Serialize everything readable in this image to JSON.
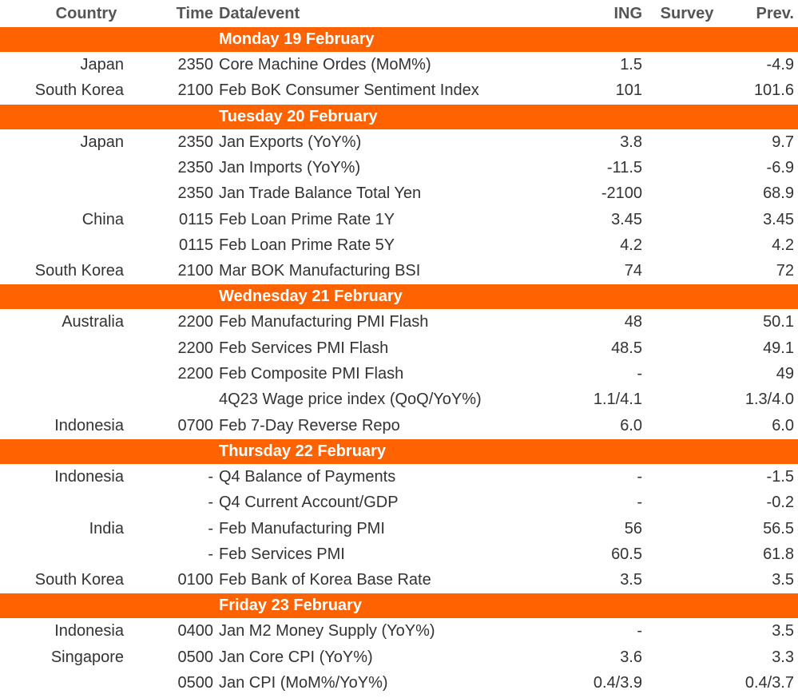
{
  "header": {
    "country": "Country",
    "time": "Time",
    "event": "Data/event",
    "ing": "ING",
    "survey": "Survey",
    "prev": "Prev."
  },
  "sections": [
    {
      "title": "Monday 19 February",
      "rows": [
        [
          "Japan",
          "2350",
          "Core Machine Ordes (MoM%)",
          "1.5",
          "-4.9"
        ],
        [
          "South Korea",
          "2100",
          "Feb BoK Consumer Sentiment Index",
          "101",
          "101.6"
        ]
      ]
    },
    {
      "title": "Tuesday 20 February",
      "rows": [
        [
          "Japan",
          "2350",
          "Jan Exports (YoY%)",
          "3.8",
          "9.7"
        ],
        [
          null,
          "2350",
          "Jan Imports (YoY%)",
          "-11.5",
          "-6.9"
        ],
        [
          null,
          "2350",
          "Jan Trade Balance Total Yen",
          "-2100",
          "68.9"
        ],
        [
          "China",
          "0115",
          "Feb Loan Prime Rate 1Y",
          "3.45",
          "3.45"
        ],
        [
          null,
          "0115",
          "Feb Loan Prime Rate 5Y",
          "4.2",
          "4.2"
        ],
        [
          "South Korea",
          "2100",
          "Mar BOK Manufacturing BSI",
          "74",
          "72"
        ]
      ]
    },
    {
      "title": "Wednesday 21 February",
      "rows": [
        [
          "Australia",
          "2200",
          "Feb Manufacturing PMI Flash",
          "48",
          "50.1"
        ],
        [
          null,
          "2200",
          "Feb Services PMI Flash",
          "48.5",
          "49.1"
        ],
        [
          null,
          "2200",
          "Feb Composite PMI Flash",
          "-",
          "49"
        ],
        [
          null,
          null,
          "4Q23 Wage price index (QoQ/YoY%)",
          "1.1/4.1",
          "1.3/4.0"
        ],
        [
          "Indonesia",
          "0700",
          "Feb 7-Day Reverse Repo",
          "6.0",
          "6.0"
        ]
      ]
    },
    {
      "title": "Thursday 22 February",
      "rows": [
        [
          "Indonesia",
          "-",
          "Q4 Balance of Payments",
          "-",
          "-1.5"
        ],
        [
          null,
          "-",
          "Q4 Current Account/GDP",
          "-",
          "-0.2"
        ],
        [
          "India",
          "-",
          "Feb Manufacturing PMI",
          "56",
          "56.5"
        ],
        [
          null,
          "-",
          "Feb Services PMI",
          "60.5",
          "61.8"
        ],
        [
          "South Korea",
          "0100",
          "Feb Bank of Korea Base Rate",
          "3.5",
          "3.5"
        ]
      ]
    },
    {
      "title": "Friday 23 February",
      "rows": [
        [
          "Indonesia",
          "0400",
          "Jan M2 Money Supply (YoY%)",
          "-",
          "3.5"
        ],
        [
          "Singapore",
          "0500",
          "Jan Core CPI (YoY%)",
          "3.6",
          "3.3"
        ],
        [
          null,
          "0500",
          "Jan CPI (MoM%/YoY%)",
          "0.4/3.9",
          "0.4/3.7"
        ]
      ]
    }
  ]
}
